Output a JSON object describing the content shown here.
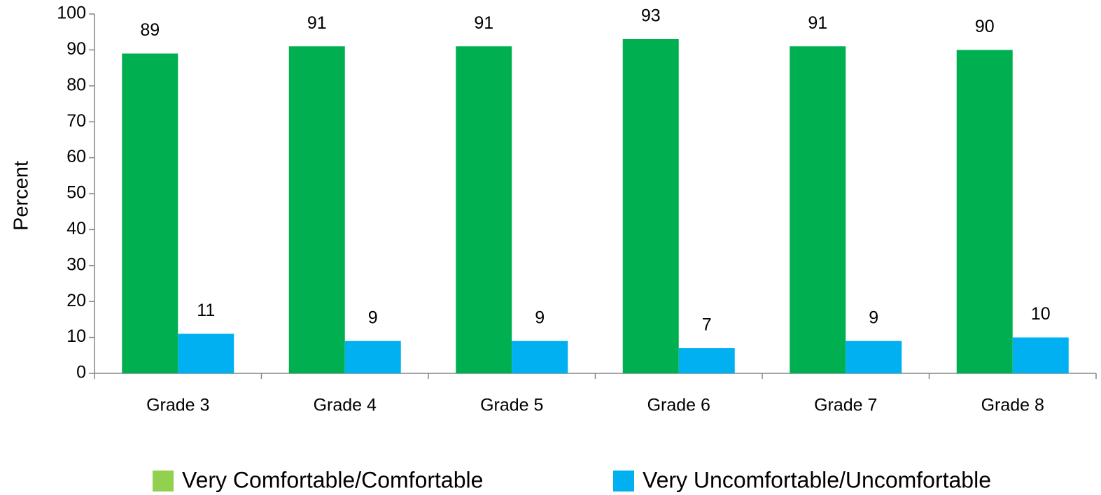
{
  "chart_data": {
    "type": "bar",
    "y_label": "Percent",
    "categories": [
      "Grade 3",
      "Grade 4",
      "Grade 5",
      "Grade 6",
      "Grade 7",
      "Grade 8"
    ],
    "series": [
      {
        "name": "Very Comfortable/Comfortable",
        "color": "#00b050",
        "legend_color": "#92d050",
        "values": [
          89,
          91,
          91,
          93,
          91,
          90
        ]
      },
      {
        "name": "Very Uncomfortable/Uncomfortable",
        "color": "#00b0f0",
        "legend_color": "#00b0f0",
        "values": [
          11,
          9,
          9,
          7,
          9,
          10
        ]
      }
    ],
    "ylim": [
      0,
      100
    ],
    "yticks": [
      0,
      10,
      20,
      30,
      40,
      50,
      60,
      70,
      80,
      90,
      100
    ],
    "grid": false,
    "legend": "bottom"
  }
}
